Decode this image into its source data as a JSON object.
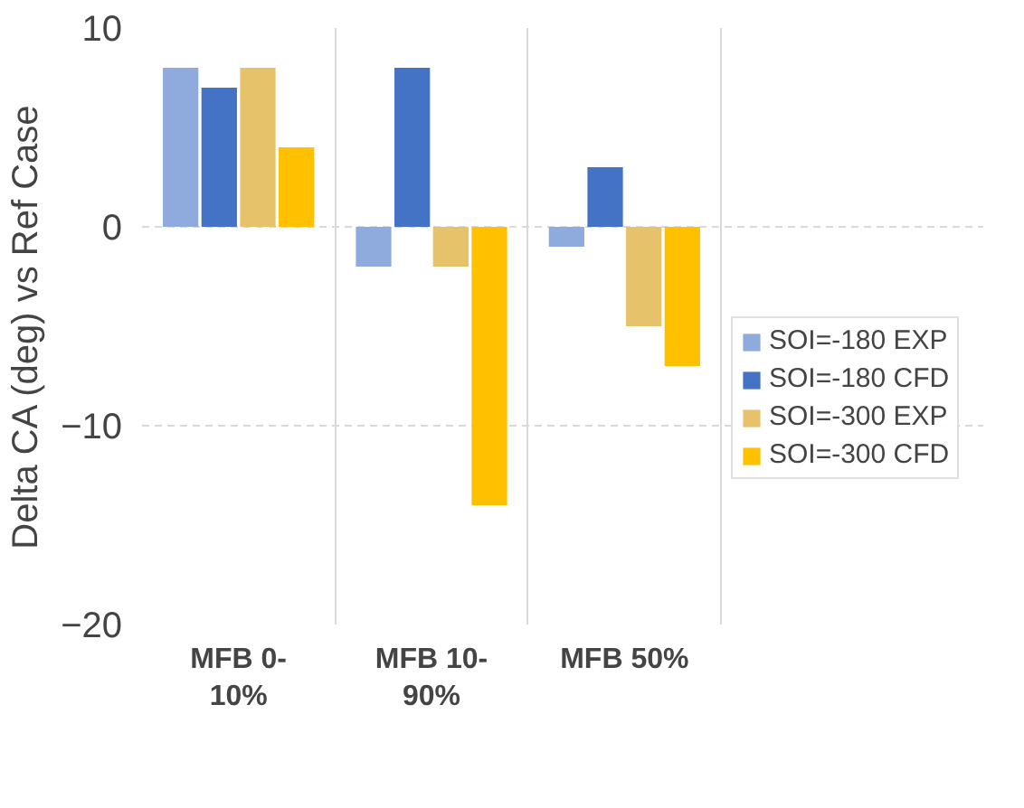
{
  "chart_data": {
    "type": "bar",
    "ylabel": "Delta CA (deg) vs Ref Case",
    "categories": [
      "MFB 0-10%",
      "MFB 10-90%",
      "MFB 50%"
    ],
    "series": [
      {
        "name": "SOI=-180 EXP",
        "color": "#8faadc",
        "values": [
          8,
          -2,
          -1
        ]
      },
      {
        "name": "SOI=-180 CFD",
        "color": "#4472c4",
        "values": [
          7,
          8,
          3
        ]
      },
      {
        "name": "SOI=-300 EXP",
        "color": "#e6c36a",
        "values": [
          8,
          -2,
          -5
        ]
      },
      {
        "name": "SOI=-300 CFD",
        "color": "#ffc000",
        "values": [
          4,
          -14,
          -7
        ]
      }
    ],
    "ylim": [
      -20,
      10
    ],
    "yticks": [
      -20,
      -10,
      0,
      10
    ],
    "grid": "y",
    "legend": "right"
  }
}
